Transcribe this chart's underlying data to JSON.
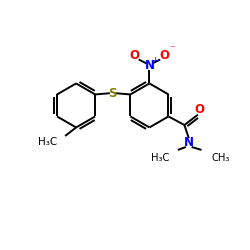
{
  "bg_color": "#ffffff",
  "bond_color": "#000000",
  "S_color": "#808000",
  "N_color": "#0000ff",
  "O_color": "#ff0000",
  "figsize": [
    2.5,
    2.5
  ],
  "dpi": 100,
  "xlim": [
    0,
    10
  ],
  "ylim": [
    0,
    10
  ]
}
